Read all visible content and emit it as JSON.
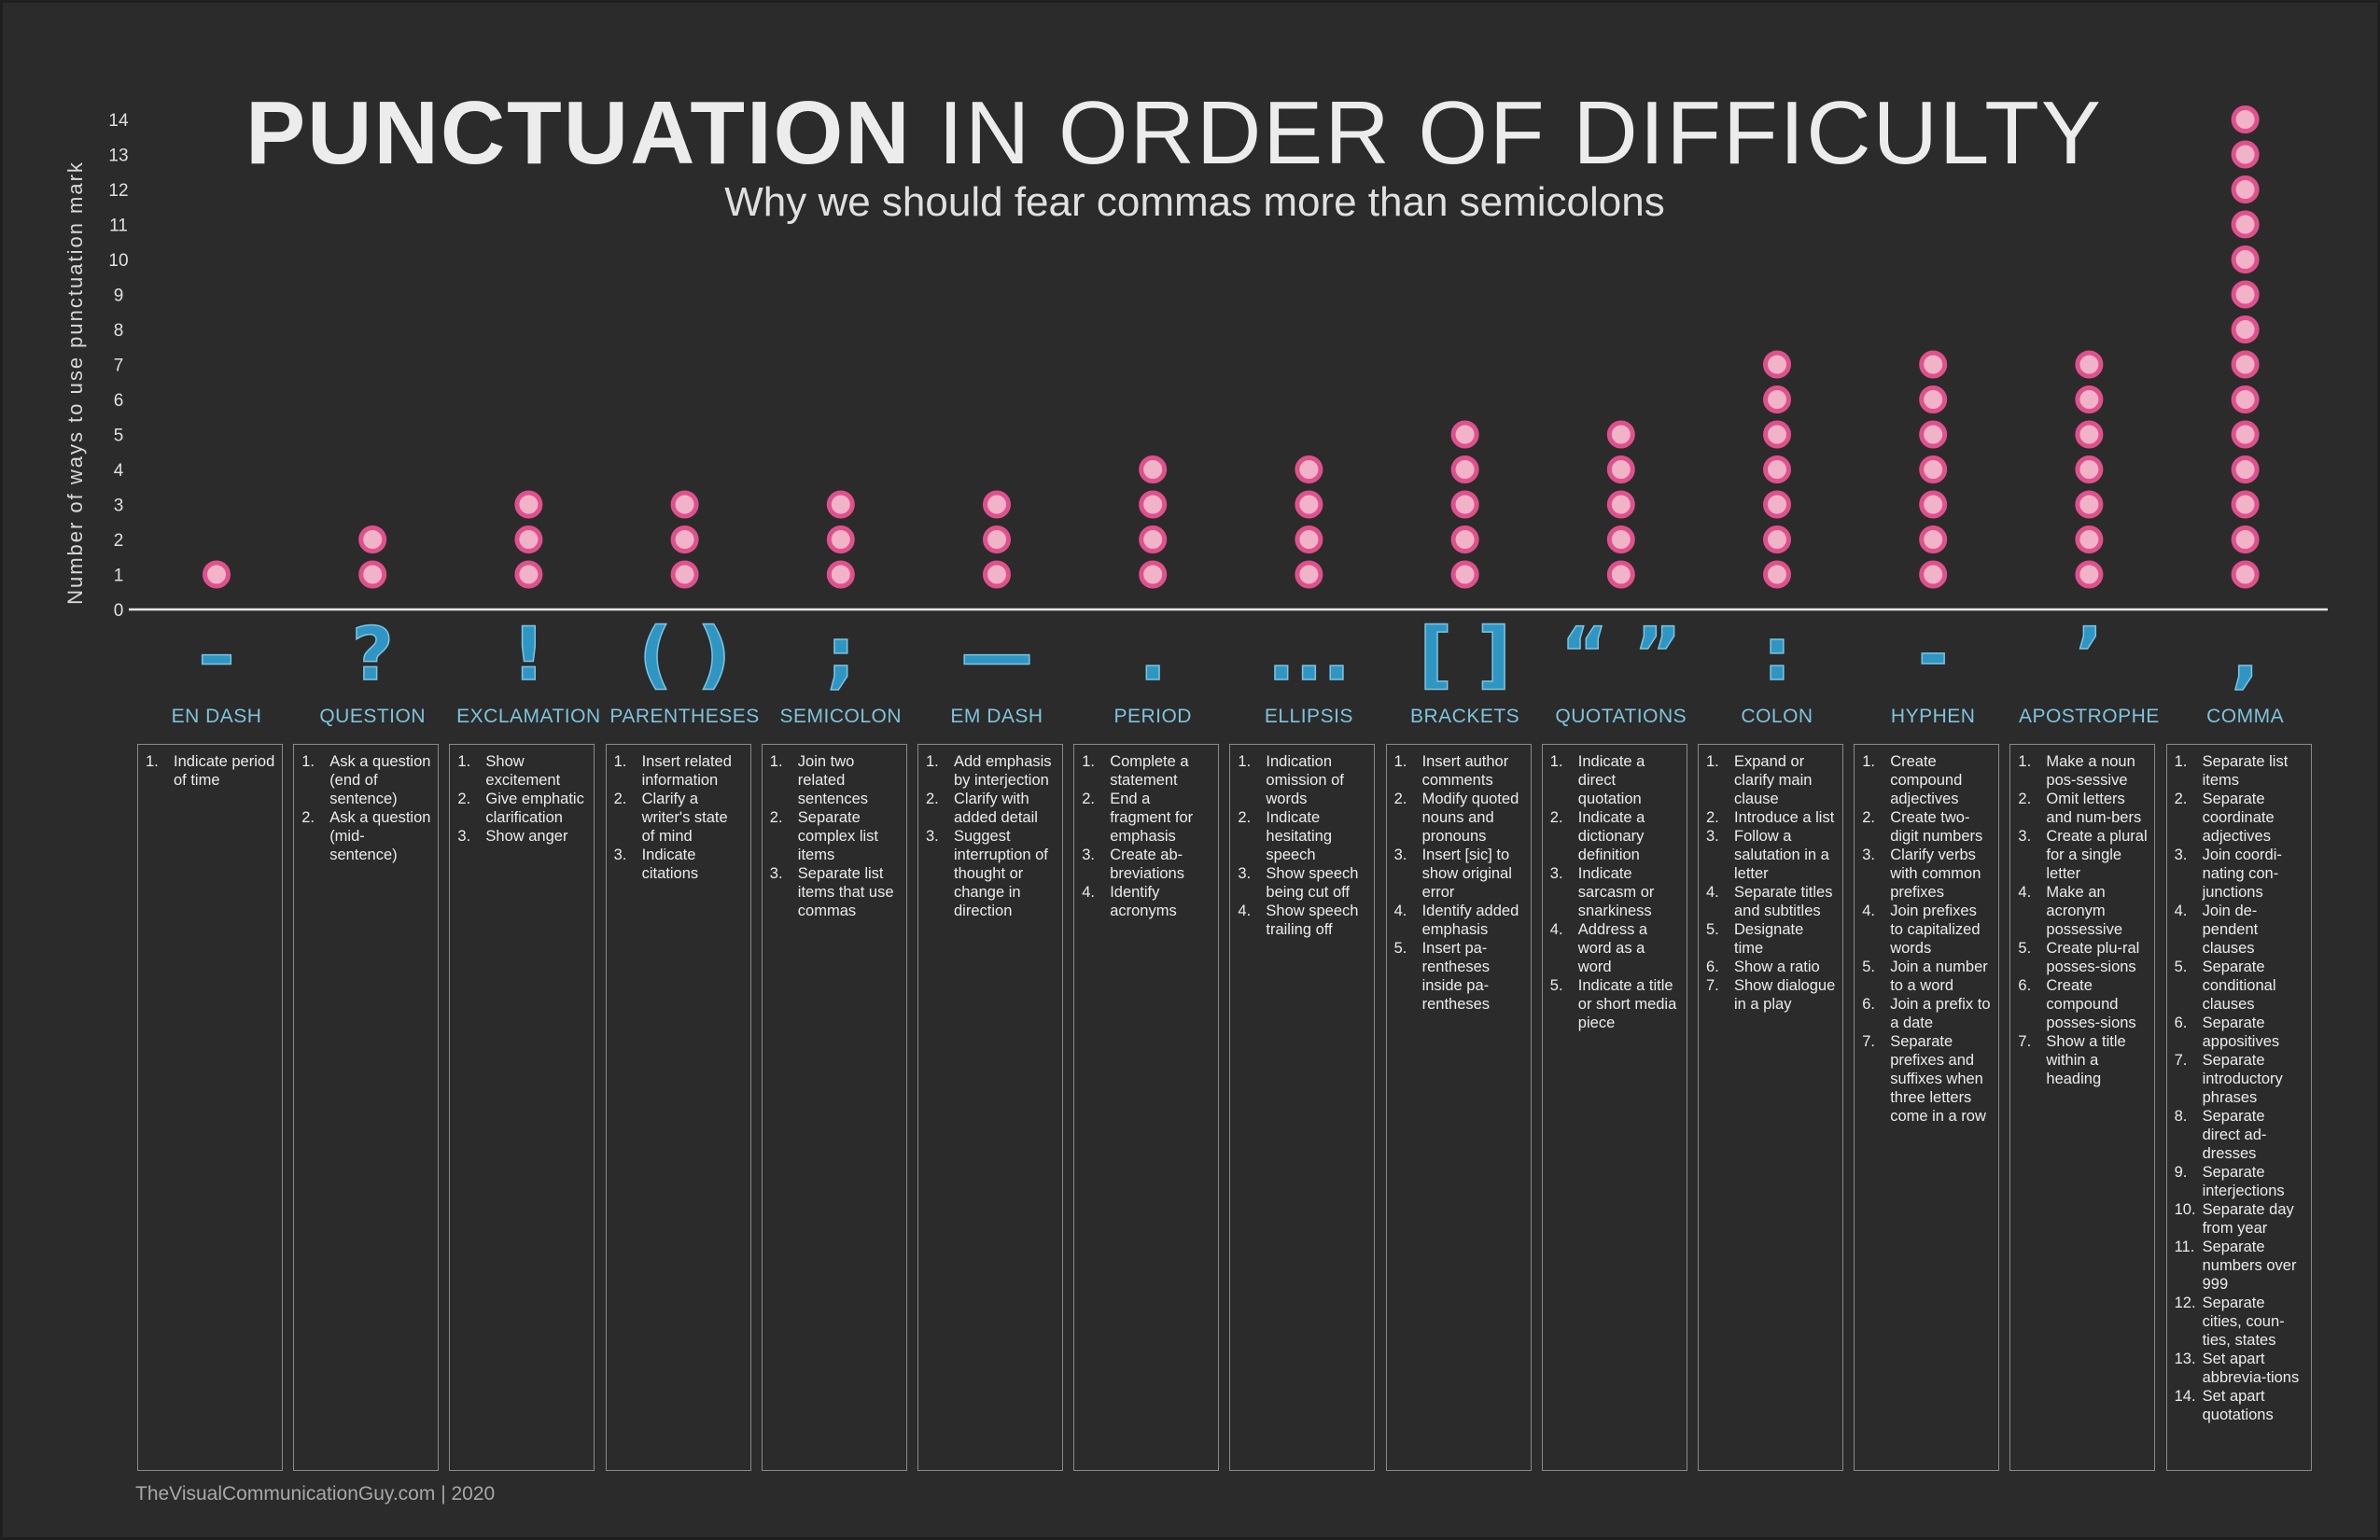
{
  "title": {
    "bold": "PUNCTUATION",
    "light": "IN ORDER OF DIFFICULTY"
  },
  "subtitle": "Why we should fear commas more than semicolons",
  "footer": "TheVisualCommunicationGuy.com | 2020",
  "colors": {
    "background": "#2b2b2b",
    "dot_fill": "#f0b3c8",
    "dot_stroke": "#e0508c",
    "glyph": "#2f96c4",
    "label": "#7ec3dc",
    "box_border": "#8a8a8a"
  },
  "chart_data": {
    "type": "scatter",
    "style": "stacked dot plot",
    "ylabel": "Number of ways to use punctuation mark",
    "ylim": [
      0,
      14
    ],
    "yticks": [
      "0",
      "1",
      "2",
      "3",
      "4",
      "5",
      "6",
      "7",
      "8",
      "9",
      "10",
      "11",
      "12",
      "13",
      "14"
    ],
    "grid": false,
    "categories": [
      "EN DASH",
      "QUESTION",
      "EXCLAMATION",
      "PARENTHESES",
      "SEMICOLON",
      "EM DASH",
      "PERIOD",
      "ELLIPSIS",
      "BRACKETS",
      "QUOTATIONS",
      "COLON",
      "HYPHEN",
      "APOSTROPHE",
      "COMMA"
    ],
    "glyphs": [
      "–",
      "?",
      "!",
      "( )",
      ";",
      "—",
      ".",
      "...",
      "[ ]",
      "“ ”",
      ":",
      "-",
      "’",
      ","
    ],
    "values": [
      1,
      2,
      3,
      3,
      3,
      3,
      4,
      4,
      5,
      5,
      7,
      7,
      7,
      14
    ]
  },
  "uses": [
    [
      "Indicate period of time"
    ],
    [
      "Ask a question (end of sentence)",
      "Ask a question (mid-sentence)"
    ],
    [
      "Show excitement",
      "Give emphatic clarification",
      "Show anger"
    ],
    [
      "Insert related information",
      "Clarify a writer's state of mind",
      "Indicate citations"
    ],
    [
      "Join two related sentences",
      "Separate complex list items",
      "Separate list items that use commas"
    ],
    [
      "Add emphasis by interjection",
      "Clarify with added detail",
      "Suggest interruption of thought or change in direction"
    ],
    [
      "Complete a statement",
      "End a fragment for emphasis",
      "Create ab-breviations",
      "Identify acronyms"
    ],
    [
      "Indication omission of words",
      "Indicate hesitating speech",
      "Show speech being cut off",
      "Show speech trailing off"
    ],
    [
      "Insert author comments",
      "Modify quoted nouns and pronouns",
      "Insert [sic] to show original error",
      "Identify added emphasis",
      "Insert pa-rentheses inside pa-rentheses"
    ],
    [
      "Indicate a direct quotation",
      "Indicate a dictionary definition",
      "Indicate sarcasm or snarkiness",
      "Address a word as a word",
      "Indicate a title or short media piece"
    ],
    [
      "Expand or clarify main clause",
      "Introduce a list",
      "Follow a salutation in a letter",
      "Separate titles and subtitles",
      "Designate time",
      "Show a ratio",
      "Show dialogue in a play"
    ],
    [
      "Create compound adjectives",
      "Create two-digit numbers",
      "Clarify verbs with common prefixes",
      "Join prefixes to capitalized words",
      "Join a number to a word",
      "Join a prefix to a date",
      "Separate prefixes and suffixes when  three letters come in a row"
    ],
    [
      "Make a noun pos-sessive",
      "Omit letters and num-bers",
      "Create a plural for a single letter",
      "Make an acronym possessive",
      "Create plu-ral posses-sions",
      "Create compound posses-sions",
      "Show a title within a heading"
    ],
    [
      "Separate list items",
      "Separate coordinate adjectives",
      "Join coordi-nating con-junctions",
      "Join de-pendent clauses",
      "Separate conditional clauses",
      "Separate appositives",
      "Separate introductory phrases",
      "Separate direct ad-dresses",
      "Separate interjections",
      "Separate day from year",
      "Separate numbers over 999",
      "Separate cities, coun-ties, states",
      "Set apart abbrevia-tions",
      "Set apart quotations"
    ]
  ]
}
